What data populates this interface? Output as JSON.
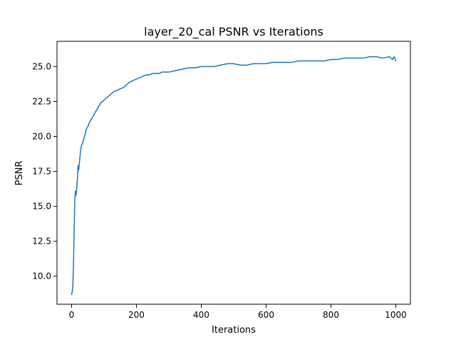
{
  "chart_data": {
    "type": "line",
    "title": "layer_20_cal PSNR vs Iterations",
    "xlabel": "Iterations",
    "ylabel": "PSNR",
    "xlim": [
      -45,
      1045
    ],
    "ylim": [
      8.0,
      26.8
    ],
    "x_ticks": [
      0,
      200,
      400,
      600,
      800,
      1000
    ],
    "x_tick_labels": [
      "0",
      "200",
      "400",
      "600",
      "800",
      "1000"
    ],
    "y_ticks": [
      10.0,
      12.5,
      15.0,
      17.5,
      20.0,
      22.5,
      25.0
    ],
    "y_tick_labels": [
      "10.0",
      "12.5",
      "15.0",
      "17.5",
      "20.0",
      "22.5",
      "25.0"
    ],
    "grid": false,
    "legend": "none",
    "series": [
      {
        "color": "#1f77b4",
        "x": [
          0,
          2,
          4,
          6,
          8,
          10,
          12,
          14,
          16,
          18,
          20,
          22,
          24,
          26,
          28,
          30,
          35,
          40,
          45,
          50,
          55,
          60,
          65,
          70,
          75,
          80,
          85,
          90,
          95,
          100,
          110,
          120,
          130,
          140,
          150,
          160,
          170,
          180,
          190,
          200,
          210,
          220,
          230,
          240,
          250,
          260,
          270,
          280,
          290,
          300,
          320,
          340,
          360,
          380,
          400,
          420,
          440,
          460,
          480,
          500,
          520,
          540,
          560,
          580,
          600,
          620,
          640,
          660,
          680,
          700,
          720,
          740,
          760,
          780,
          800,
          820,
          840,
          860,
          880,
          900,
          920,
          940,
          960,
          980,
          990,
          995,
          1000
        ],
        "y": [
          8.7,
          8.9,
          9.4,
          11.0,
          13.5,
          15.6,
          16.1,
          15.8,
          16.3,
          17.0,
          17.9,
          17.6,
          18.1,
          18.6,
          19.0,
          19.3,
          19.6,
          20.0,
          20.5,
          20.7,
          21.0,
          21.2,
          21.4,
          21.6,
          21.8,
          22.0,
          22.2,
          22.4,
          22.5,
          22.6,
          22.8,
          23.0,
          23.2,
          23.3,
          23.4,
          23.5,
          23.7,
          23.9,
          24.0,
          24.1,
          24.2,
          24.3,
          24.4,
          24.4,
          24.5,
          24.5,
          24.5,
          24.6,
          24.6,
          24.6,
          24.7,
          24.8,
          24.9,
          24.9,
          25.0,
          25.0,
          25.0,
          25.1,
          25.2,
          25.2,
          25.1,
          25.1,
          25.2,
          25.2,
          25.2,
          25.3,
          25.3,
          25.3,
          25.3,
          25.4,
          25.4,
          25.4,
          25.4,
          25.4,
          25.5,
          25.5,
          25.6,
          25.6,
          25.6,
          25.6,
          25.7,
          25.7,
          25.6,
          25.7,
          25.5,
          25.7,
          25.4
        ]
      }
    ]
  }
}
